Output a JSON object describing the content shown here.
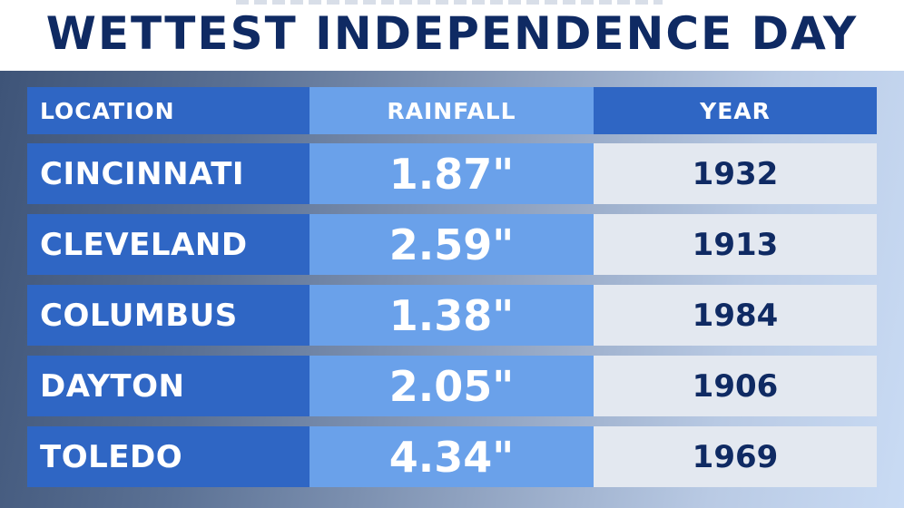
{
  "title": "WETTEST INDEPENDENCE DAY",
  "table": {
    "headers": {
      "location": "LOCATION",
      "rainfall": "RAINFALL",
      "year": "YEAR"
    },
    "rows": [
      {
        "location": "CINCINNATI",
        "rainfall": "1.87\"",
        "year": "1932"
      },
      {
        "location": "CLEVELAND",
        "rainfall": "2.59\"",
        "year": "1913"
      },
      {
        "location": "COLUMBUS",
        "rainfall": "1.38\"",
        "year": "1984"
      },
      {
        "location": "DAYTON",
        "rainfall": "2.05\"",
        "year": "1906"
      },
      {
        "location": "TOLEDO",
        "rainfall": "4.34\"",
        "year": "1969"
      }
    ]
  },
  "colors": {
    "title": "#0f2a63",
    "location_column": "#2f66c4",
    "rainfall_column": "#6aa1ea",
    "year_column": "#e3e8f0",
    "year_text": "#0f2a63"
  }
}
